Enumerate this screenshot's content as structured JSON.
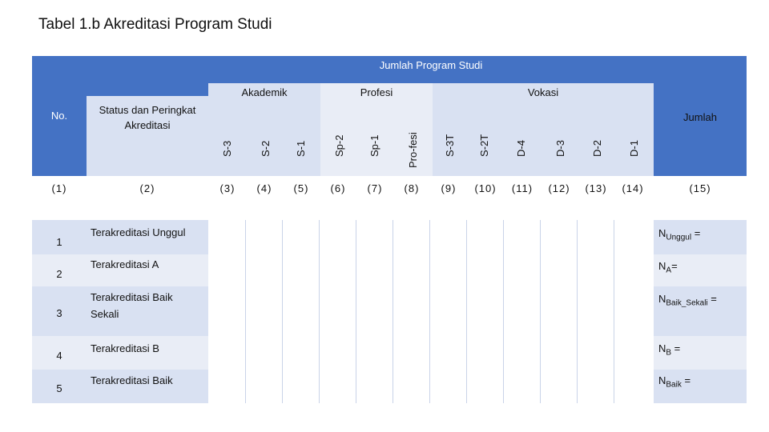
{
  "title": "Tabel 1.b Akreditasi Program Studi",
  "colors": {
    "header_blue": "#4472C4",
    "light_blue": "#D9E1F2",
    "white": "#FFFFFF"
  },
  "header": {
    "no": "No.",
    "status": "Status dan Peringkat Akreditasi",
    "jumlah_program_studi": "Jumlah Program Studi",
    "akademik": "Akademik",
    "profesi": "Profesi",
    "vokasi": "Vokasi",
    "jumlah": "Jumlah",
    "subcols": [
      "S-3",
      "S-2",
      "S-1",
      "Sp-2",
      "Sp-1",
      "Pro-fesi",
      "S-3T",
      "S-2T",
      "D-4",
      "D-3",
      "D-2",
      "D-1"
    ]
  },
  "col_numbers": [
    "(1)",
    "(2)",
    "(3)",
    "(4)",
    "(5)",
    "(6)",
    "(7)",
    "(8)",
    "(9)",
    "(10)",
    "(11)",
    "(12)",
    "(13)",
    "(14)",
    "(15)"
  ],
  "rows": [
    {
      "no": "1",
      "label": "Terakreditasi Unggul",
      "sum_main": "N",
      "sum_sub": "Unggul",
      "sum_tail": " ="
    },
    {
      "no": "2",
      "label": "Terakreditasi A",
      "sum_main": "N",
      "sum_sub": "A",
      "sum_tail": "="
    },
    {
      "no": "3",
      "label": "Terakreditasi Baik Sekali",
      "sum_main": "N",
      "sum_sub": "Baik_Sekali",
      "sum_tail": " ="
    },
    {
      "no": "4",
      "label": "Terakreditasi B",
      "sum_main": "N",
      "sum_sub": "B",
      "sum_tail": " ="
    },
    {
      "no": "5",
      "label": "Terakreditasi Baik",
      "sum_main": "N",
      "sum_sub": "Baik",
      "sum_tail": " ="
    }
  ]
}
